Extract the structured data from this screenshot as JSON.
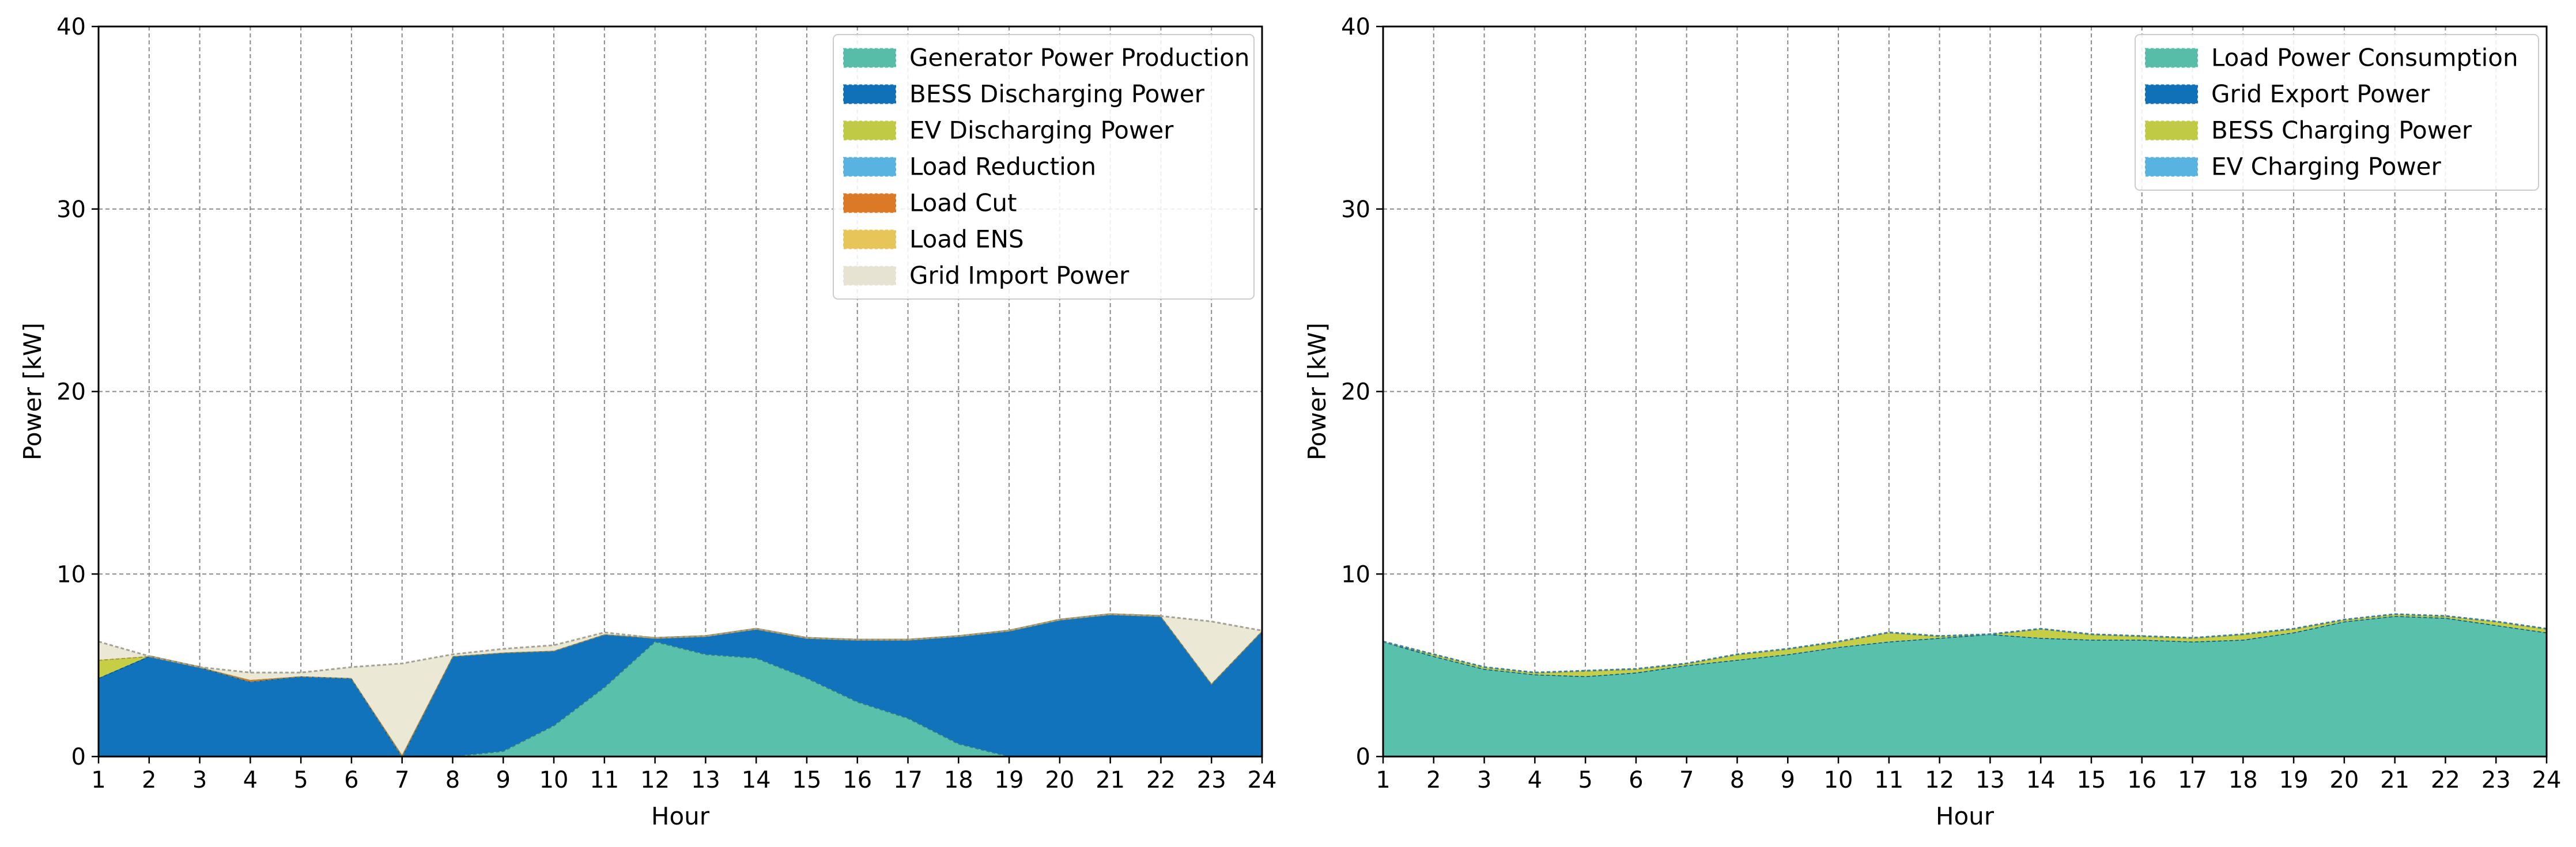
{
  "chart_data": [
    {
      "type": "area",
      "stacked": true,
      "title": "",
      "xlabel": "Hour",
      "ylabel": "Power [kW]",
      "xlim": [
        1,
        24
      ],
      "ylim": [
        0,
        40
      ],
      "xticks": [
        1,
        2,
        3,
        4,
        5,
        6,
        7,
        8,
        9,
        10,
        11,
        12,
        13,
        14,
        15,
        16,
        17,
        18,
        19,
        20,
        21,
        22,
        23,
        24
      ],
      "yticks": [
        0,
        10,
        20,
        30,
        40
      ],
      "grid": true,
      "legend_position": "top-right",
      "x": [
        1,
        2,
        3,
        4,
        5,
        6,
        7,
        8,
        9,
        10,
        11,
        12,
        13,
        14,
        15,
        16,
        17,
        18,
        19,
        20,
        21,
        22,
        23,
        24
      ],
      "series": [
        {
          "name": "Generator Power Production",
          "color": "#59c1ab",
          "values": [
            0,
            0,
            0,
            0,
            0,
            0,
            0,
            0,
            0.3,
            1.7,
            3.8,
            6.3,
            5.6,
            5.4,
            4.3,
            3.0,
            2.1,
            0.7,
            0,
            0,
            0,
            0,
            0,
            0
          ]
        },
        {
          "name": "BESS Discharging Power",
          "color": "#1173bc",
          "values": [
            4.3,
            5.5,
            4.9,
            4.1,
            4.4,
            4.3,
            0,
            5.5,
            5.4,
            4.1,
            2.9,
            0.2,
            1.0,
            1.6,
            2.2,
            3.4,
            4.3,
            5.9,
            6.9,
            7.5,
            7.8,
            7.7,
            4.0,
            6.9
          ]
        },
        {
          "name": "EV Discharging Power",
          "color": "#c5ce45",
          "values": [
            1.0,
            0,
            0,
            0,
            0,
            0,
            0,
            0,
            0,
            0,
            0,
            0,
            0,
            0,
            0,
            0,
            0,
            0,
            0,
            0,
            0,
            0,
            0,
            0
          ]
        },
        {
          "name": "Load Reduction",
          "color": "#5ab7e6",
          "values": [
            0,
            0,
            0,
            0,
            0,
            0,
            0,
            0,
            0,
            0,
            0,
            0,
            0,
            0,
            0,
            0,
            0,
            0,
            0,
            0,
            0,
            0,
            0,
            0
          ]
        },
        {
          "name": "Load Cut",
          "color": "#e07b28",
          "values": [
            0,
            0,
            0,
            0.1,
            0,
            0,
            0.1,
            0,
            0,
            0,
            0,
            0,
            0,
            0,
            0,
            0,
            0,
            0,
            0,
            0,
            0,
            0,
            0,
            0
          ]
        },
        {
          "name": "Load ENS",
          "color": "#ecc95a",
          "values": [
            0,
            0,
            0,
            0,
            0,
            0,
            0,
            0,
            0,
            0,
            0,
            0,
            0,
            0,
            0,
            0,
            0,
            0,
            0,
            0,
            0,
            0,
            0,
            0
          ]
        },
        {
          "name": "Grid Import Power",
          "color": "#ece8d6",
          "values": [
            1.0,
            0,
            0,
            0.4,
            0.2,
            0.6,
            5.0,
            0.1,
            0.2,
            0.3,
            0.1,
            0,
            0,
            0,
            0,
            0,
            0,
            0,
            0,
            0,
            0,
            0,
            3.4,
            0
          ]
        }
      ]
    },
    {
      "type": "area",
      "stacked": true,
      "title": "",
      "xlabel": "Hour",
      "ylabel": "Power [kW]",
      "xlim": [
        1,
        24
      ],
      "ylim": [
        0,
        40
      ],
      "xticks": [
        1,
        2,
        3,
        4,
        5,
        6,
        7,
        8,
        9,
        10,
        11,
        12,
        13,
        14,
        15,
        16,
        17,
        18,
        19,
        20,
        21,
        22,
        23,
        24
      ],
      "yticks": [
        0,
        10,
        20,
        30,
        40
      ],
      "grid": true,
      "legend_position": "top-right",
      "x": [
        1,
        2,
        3,
        4,
        5,
        6,
        7,
        8,
        9,
        10,
        11,
        12,
        13,
        14,
        15,
        16,
        17,
        18,
        19,
        20,
        21,
        22,
        23,
        24
      ],
      "series": [
        {
          "name": "Load Power Consumption",
          "color": "#59c1ab",
          "values": [
            6.3,
            5.5,
            4.8,
            4.5,
            4.4,
            4.6,
            5.0,
            5.3,
            5.6,
            6.0,
            6.3,
            6.5,
            6.7,
            6.5,
            6.4,
            6.4,
            6.3,
            6.4,
            6.8,
            7.4,
            7.7,
            7.6,
            7.2,
            6.8
          ]
        },
        {
          "name": "Grid Export Power",
          "color": "#1173bc",
          "values": [
            0,
            0,
            0,
            0,
            0,
            0,
            0,
            0,
            0,
            0,
            0,
            0,
            0,
            0,
            0,
            0,
            0,
            0,
            0,
            0,
            0,
            0,
            0,
            0
          ]
        },
        {
          "name": "BESS Charging Power",
          "color": "#c5ce45",
          "values": [
            0,
            0.1,
            0.1,
            0.1,
            0.3,
            0.2,
            0.1,
            0.3,
            0.3,
            0.3,
            0.5,
            0.1,
            0,
            0.5,
            0.3,
            0.2,
            0.2,
            0.3,
            0.2,
            0.1,
            0.1,
            0.1,
            0.2,
            0.2
          ]
        },
        {
          "name": "EV Charging Power",
          "color": "#5ab7e6",
          "values": [
            0,
            0,
            0,
            0,
            0,
            0,
            0,
            0,
            0,
            0,
            0,
            0,
            0,
            0,
            0,
            0,
            0,
            0,
            0,
            0,
            0,
            0,
            0,
            0
          ]
        }
      ]
    }
  ]
}
